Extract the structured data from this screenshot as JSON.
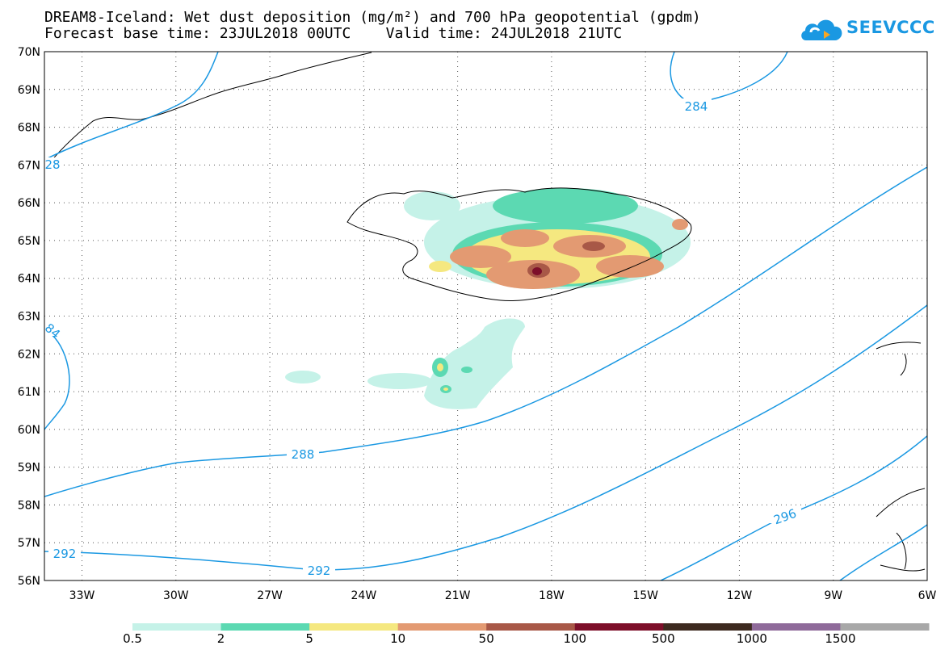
{
  "title": {
    "line1": "DREAM8-Iceland: Wet dust deposition (mg/m²) and 700 hPa geopotential (gpdm)",
    "line2": "Forecast base time: 23JUL2018 00UTC    Valid time: 24JUL2018 21UTC"
  },
  "logo": {
    "text": "SEEVCCC",
    "icon": "cloud-icon",
    "color": "#1a98e2"
  },
  "map": {
    "extent": {
      "lon_min": -34.2,
      "lon_max": -6,
      "lat_min": 56,
      "lat_max": 70
    },
    "lat_labels": [
      {
        "lat": 70,
        "label": "70N"
      },
      {
        "lat": 69,
        "label": "69N"
      },
      {
        "lat": 68,
        "label": "68N"
      },
      {
        "lat": 67,
        "label": "67N"
      },
      {
        "lat": 66,
        "label": "66N"
      },
      {
        "lat": 65,
        "label": "65N"
      },
      {
        "lat": 64,
        "label": "64N"
      },
      {
        "lat": 63,
        "label": "63N"
      },
      {
        "lat": 62,
        "label": "62N"
      },
      {
        "lat": 61,
        "label": "61N"
      },
      {
        "lat": 60,
        "label": "60N"
      },
      {
        "lat": 59,
        "label": "59N"
      },
      {
        "lat": 58,
        "label": "58N"
      },
      {
        "lat": 57,
        "label": "57N"
      },
      {
        "lat": 56,
        "label": "56N"
      }
    ],
    "lon_labels": [
      {
        "lon": -33,
        "label": "33W"
      },
      {
        "lon": -30,
        "label": "30W"
      },
      {
        "lon": -27,
        "label": "27W"
      },
      {
        "lon": -24,
        "label": "24W"
      },
      {
        "lon": -21,
        "label": "21W"
      },
      {
        "lon": -18,
        "label": "18W"
      },
      {
        "lon": -15,
        "label": "15W"
      },
      {
        "lon": -12,
        "label": "12W"
      },
      {
        "lon": -9,
        "label": "9W"
      },
      {
        "lon": -6,
        "label": "6W"
      }
    ],
    "contour_color": "#1a98e2",
    "contour_labels": [
      "284",
      "288",
      "292",
      "292",
      "296",
      "28",
      "84"
    ]
  },
  "legend": {
    "labels": [
      "0.5",
      "2",
      "5",
      "10",
      "50",
      "100",
      "500",
      "1000",
      "1500"
    ],
    "colors": [
      "#c5f2e8",
      "#5cd9b2",
      "#f5e880",
      "#e39a72",
      "#a85847",
      "#7d0f2a",
      "#3d2a1f",
      "#8f6a9a",
      "#a8a8a8"
    ]
  }
}
